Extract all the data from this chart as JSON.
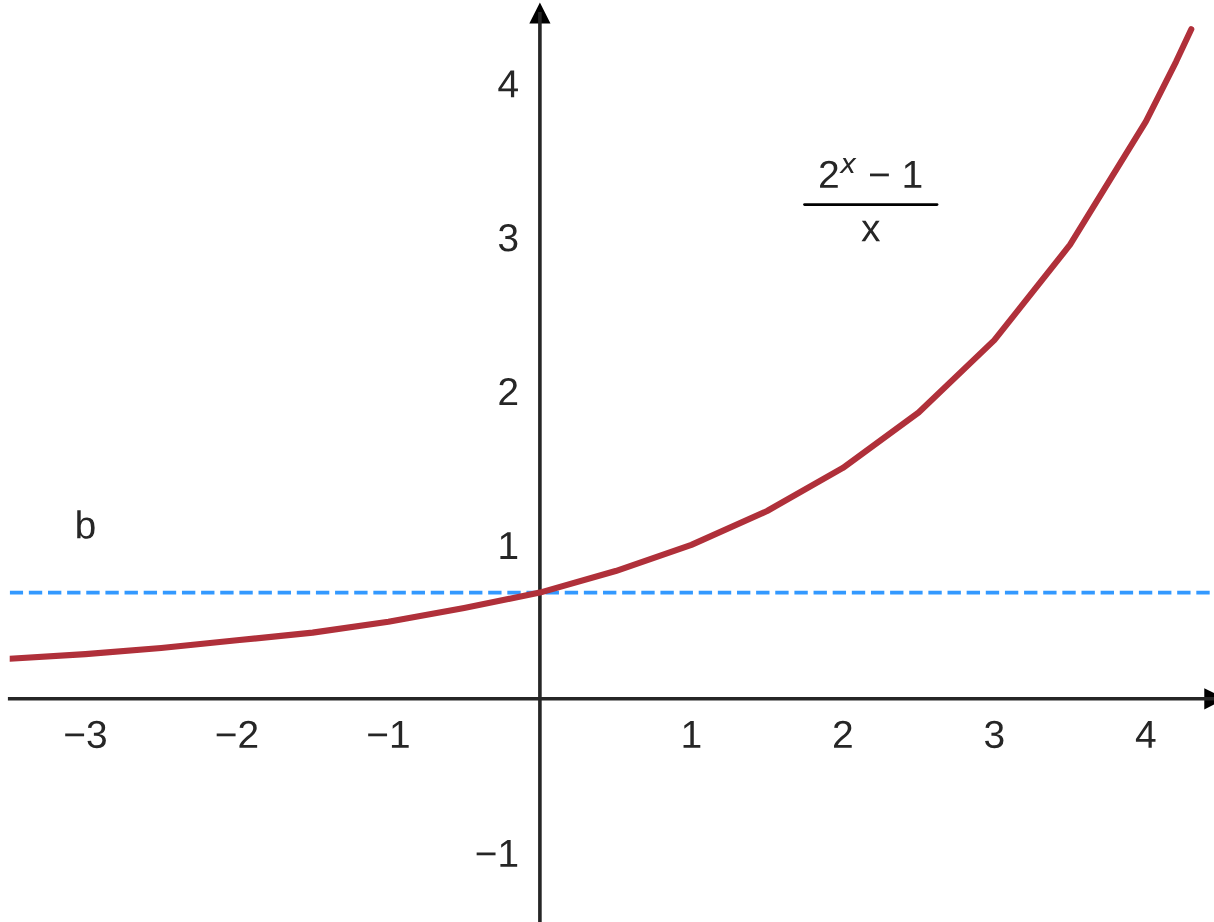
{
  "chart_data": {
    "type": "line",
    "x": [
      -3.5,
      -3,
      -2.5,
      -2,
      -1.5,
      -1,
      -0.5,
      0,
      0.5,
      1,
      1.5,
      2,
      2.5,
      3,
      3.5,
      4,
      4.2,
      4.3
    ],
    "series": [
      {
        "color": "#b0303a",
        "values": [
          0.26,
          0.29,
          0.33,
          0.38,
          0.43,
          0.5,
          0.59,
          0.69,
          0.83,
          1,
          1.22,
          1.5,
          1.86,
          2.33,
          2.95,
          3.75,
          4.14,
          4.35
        ]
      }
    ],
    "xlim": [
      -3.5,
      4.45
    ],
    "ylim": [
      -1.45,
      4.45
    ],
    "xticks": [
      {
        "value": -3,
        "label": "−3"
      },
      {
        "value": -2,
        "label": "−2"
      },
      {
        "value": -1,
        "label": "−1"
      },
      1,
      2,
      3,
      4
    ],
    "yticks": [
      {
        "value": -1,
        "label": "−1"
      },
      1,
      2,
      3,
      4
    ],
    "ref_lines": [
      {
        "axis": "y",
        "value": 0.69,
        "label": "b",
        "color": "#3399ff",
        "line_style": "dashed"
      }
    ],
    "annotations": [
      "2$^{x}$ − 1\nx"
    ],
    "grid": false,
    "legend": false,
    "line_style": "solid",
    "marker": "none"
  }
}
